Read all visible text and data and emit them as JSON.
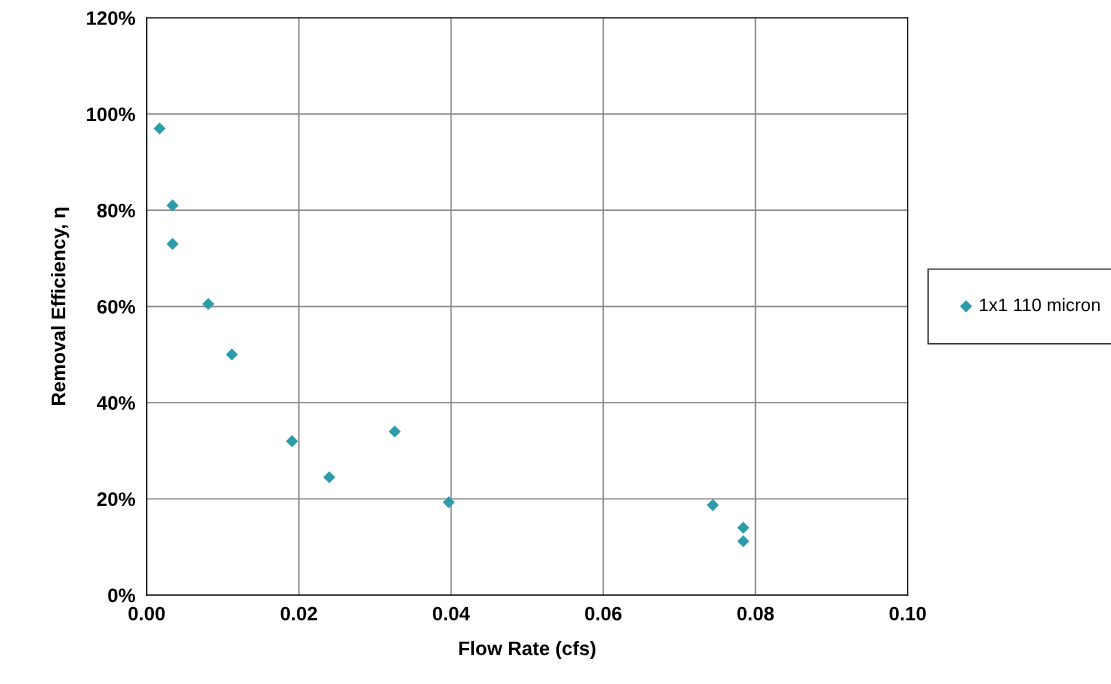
{
  "chart_data": {
    "type": "scatter",
    "xlabel": "Flow Rate (cfs)",
    "ylabel": "Removal Efficiency, η",
    "series": [
      {
        "name": "1x1 110 micron",
        "color": "#2e9bab",
        "x": [
          0.0017,
          0.0034,
          0.0034,
          0.0081,
          0.0112,
          0.0191,
          0.024,
          0.0326,
          0.0397,
          0.0744,
          0.0784,
          0.0784
        ],
        "values": [
          97,
          81,
          73,
          60.5,
          50,
          32,
          24.5,
          34,
          19.3,
          18.7,
          14,
          11.2
        ]
      }
    ],
    "xlim": [
      0,
      0.1
    ],
    "xticks": [
      {
        "value": 0,
        "label": "0.00"
      },
      {
        "value": 0.02,
        "label": "0.02"
      },
      {
        "value": 0.04,
        "label": "0.04"
      },
      {
        "value": 0.06,
        "label": "0.06"
      },
      {
        "value": 0.08,
        "label": "0.08"
      },
      {
        "value": 0.1,
        "label": "0.10"
      }
    ],
    "ylim": [
      0,
      120
    ],
    "yticks": [
      {
        "value": 0,
        "label": "0%"
      },
      {
        "value": 20,
        "label": "20%"
      },
      {
        "value": 40,
        "label": "40%"
      },
      {
        "value": 60,
        "label": "60%"
      },
      {
        "value": 80,
        "label": "80%"
      },
      {
        "value": 100,
        "label": "100%"
      },
      {
        "value": 120,
        "label": "120%"
      }
    ],
    "grid": true,
    "legend": "right",
    "marker": "diamond"
  }
}
